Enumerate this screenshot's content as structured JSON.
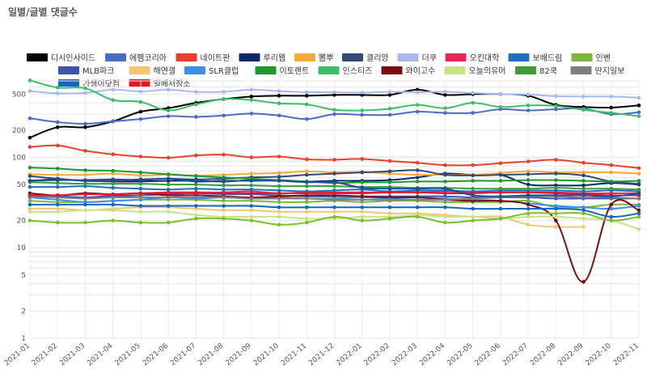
{
  "page_title": "일별/글별 댓글수",
  "chart_data": {
    "type": "line",
    "title": "",
    "xlabel": "",
    "ylabel": "",
    "log_scale_y": true,
    "ylim": [
      1,
      700
    ],
    "y_ticks": [
      1,
      2,
      5,
      10,
      20,
      50,
      100,
      200,
      500
    ],
    "grid": true,
    "legend_position": "top",
    "categories": [
      "2021-01",
      "2021-02",
      "2021-03",
      "2021-04",
      "2021-05",
      "2021-06",
      "2021-07",
      "2021-08",
      "2021-09",
      "2021-10",
      "2021-11",
      "2021-12",
      "2022-01",
      "2022-02",
      "2022-03",
      "2022-04",
      "2022-05",
      "2022-06",
      "2022-07",
      "2022-08",
      "2022-09",
      "2022-10",
      "2022-11"
    ],
    "series": [
      {
        "name": "디시인사이드",
        "color": "#000000",
        "values": [
          165,
          215,
          215,
          250,
          320,
          350,
          400,
          440,
          470,
          480,
          480,
          490,
          490,
          490,
          560,
          490,
          500,
          500,
          480,
          380,
          360,
          355,
          375
        ]
      },
      {
        "name": "에펨코리아",
        "color": "#4b6cc1",
        "values": [
          270,
          245,
          235,
          250,
          265,
          285,
          280,
          290,
          305,
          290,
          265,
          300,
          295,
          295,
          320,
          310,
          310,
          340,
          330,
          340,
          345,
          300,
          315
        ]
      },
      {
        "name": "네이트판",
        "color": "#e8412b",
        "values": [
          130,
          135,
          118,
          108,
          102,
          99,
          105,
          107,
          100,
          102,
          95,
          94,
          96,
          91,
          87,
          82,
          82,
          86,
          90,
          94,
          87,
          82,
          76
        ]
      },
      {
        "name": "루리웹",
        "color": "#0b2a6b",
        "values": [
          55,
          57,
          55,
          54,
          54,
          55,
          55,
          54,
          56,
          56,
          54,
          55,
          55,
          56,
          60,
          66,
          64,
          64,
          50,
          49,
          49,
          52,
          50
        ]
      },
      {
        "name": "뽐뿌",
        "color": "#f5a93c",
        "values": [
          65,
          64,
          64,
          66,
          63,
          64,
          63,
          64,
          66,
          67,
          70,
          68,
          69,
          66,
          64,
          64,
          64,
          67,
          70,
          68,
          68,
          68,
          66
        ]
      },
      {
        "name": "클리앙",
        "color": "#344a74",
        "values": [
          62,
          58,
          55,
          55,
          57,
          58,
          57,
          58,
          60,
          61,
          64,
          66,
          68,
          70,
          72,
          64,
          63,
          64,
          65,
          66,
          63,
          54,
          51
        ]
      },
      {
        "name": "더쿠",
        "color": "#a9b9ec",
        "values": [
          540,
          510,
          515,
          560,
          535,
          560,
          530,
          530,
          560,
          540,
          525,
          525,
          520,
          530,
          525,
          530,
          515,
          500,
          495,
          475,
          470,
          470,
          455
        ]
      },
      {
        "name": "오킨대학",
        "color": "#e6245a",
        "values": [
          38,
          37,
          36,
          38,
          40,
          41,
          41,
          41,
          42,
          40,
          41,
          41,
          41,
          41,
          41,
          42,
          41,
          41,
          41,
          41,
          40,
          40,
          40
        ]
      },
      {
        "name": "보배드림",
        "color": "#1f6fbf",
        "values": [
          47,
          47,
          48,
          46,
          45,
          44,
          45,
          44,
          44,
          43,
          42,
          43,
          44,
          42,
          43,
          43,
          42,
          43,
          43,
          43,
          42,
          43,
          42
        ]
      },
      {
        "name": "인벤",
        "color": "#7cb73a",
        "values": [
          33,
          32,
          32,
          33,
          34,
          34,
          34,
          33,
          33,
          32,
          32,
          33,
          32,
          33,
          33,
          32,
          32,
          32,
          33,
          28,
          28,
          30,
          30
        ]
      },
      {
        "name": "MLB파크",
        "color": "#3c55a8",
        "values": [
          36,
          37,
          36,
          37,
          38,
          39,
          40,
          39,
          39,
          38,
          37,
          37,
          37,
          37,
          37,
          37,
          36,
          36,
          36,
          35,
          35,
          35,
          35
        ]
      },
      {
        "name": "해연갤",
        "color": "#f7c570",
        "values": [
          27,
          27,
          26,
          27,
          28,
          28,
          27,
          26,
          26,
          25,
          25,
          25,
          25,
          24,
          24,
          23,
          22,
          22,
          18,
          17,
          17,
          null,
          null
        ]
      },
      {
        "name": "SLR클럽",
        "color": "#3d8ee6",
        "values": [
          36,
          34,
          32,
          33,
          34,
          36,
          35,
          36,
          35,
          36,
          35,
          35,
          36,
          35,
          36,
          35,
          34,
          33,
          31,
          29,
          28,
          27,
          29
        ]
      },
      {
        "name": "이토랜트",
        "color": "#1a9a2a",
        "values": [
          77,
          75,
          72,
          71,
          68,
          65,
          62,
          60,
          58,
          56,
          54,
          52,
          53,
          53,
          54,
          54,
          55,
          55,
          56,
          56,
          55,
          54,
          55
        ]
      },
      {
        "name": "인스티즈",
        "color": "#3dbd6b",
        "values": [
          710,
          590,
          580,
          430,
          410,
          330,
          385,
          440,
          430,
          395,
          385,
          335,
          330,
          345,
          380,
          350,
          400,
          360,
          375,
          370,
          335,
          310,
          285
        ]
      },
      {
        "name": "와이고수",
        "color": "#7a0f12",
        "values": [
          40,
          38,
          40,
          39,
          40,
          38,
          38,
          37,
          36,
          37,
          38,
          38,
          37,
          36,
          36,
          34,
          33,
          33,
          30,
          20,
          4.2,
          30,
          26
        ]
      },
      {
        "name": "오늘의유머",
        "color": "#c5e488",
        "values": [
          25,
          25,
          26,
          26,
          25,
          25,
          23,
          22,
          22,
          22,
          21,
          21,
          22,
          22,
          23,
          22,
          22,
          21,
          22,
          22,
          21,
          20,
          16
        ]
      },
      {
        "name": "82쿡",
        "color": "#3f9a3a",
        "values": [
          53,
          52,
          51,
          51,
          51,
          50,
          50,
          49,
          49,
          48,
          48,
          48,
          47,
          47,
          46,
          46,
          45,
          45,
          45,
          46,
          45,
          45,
          44
        ]
      },
      {
        "name": "딴지일보",
        "color": "#7f7f7f",
        "values": [
          37,
          36,
          35,
          36,
          36,
          36,
          36,
          36,
          35,
          35,
          35,
          34,
          34,
          34,
          34,
          34,
          35,
          36,
          37,
          37,
          36,
          36,
          35
        ]
      },
      {
        "name": "가생이닷컴",
        "color": "#1267b8",
        "values": [
          30,
          30,
          30,
          30,
          29,
          29,
          29,
          29,
          29,
          28,
          28,
          28,
          28,
          28,
          28,
          28,
          27,
          27,
          27,
          27,
          26,
          22,
          24
        ]
      },
      {
        "name": "일베저장소",
        "color": "#e0192a",
        "values": [
          38,
          38,
          39,
          39,
          40,
          40,
          40,
          40,
          40,
          40,
          40,
          40,
          40,
          41,
          41,
          40,
          40,
          41,
          41,
          40,
          39,
          38,
          38
        ]
      },
      {
        "name": "",
        "color": "#1a4fa0",
        "values": [
          55,
          56,
          56,
          57,
          56,
          58,
          54,
          55,
          55,
          55,
          53,
          53,
          46,
          45,
          45,
          45,
          38,
          37,
          38,
          38,
          38,
          37,
          40
        ]
      },
      {
        "name": "",
        "color": "#7bbf2a",
        "values": [
          20,
          19,
          19,
          20,
          19,
          19,
          21,
          21,
          20,
          18,
          19,
          22,
          20,
          21,
          22,
          19,
          20,
          21,
          24,
          24,
          24,
          20,
          22
        ]
      }
    ]
  }
}
